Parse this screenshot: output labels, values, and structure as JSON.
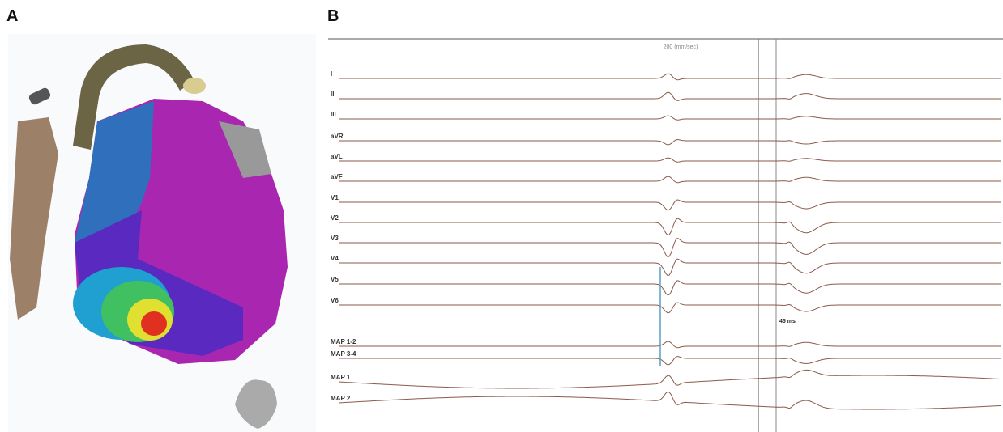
{
  "panel_a": {
    "label": "A"
  },
  "panel_b": {
    "label": "B",
    "speed_label": "200 (mm/sec)",
    "interval_label": "45 ms",
    "leads": [
      "I",
      "II",
      "III",
      "aVR",
      "aVL",
      "aVF",
      "V1",
      "V2",
      "V3",
      "V4",
      "V5",
      "V6",
      "MAP 1-2",
      "MAP 3-4",
      "MAP 1",
      "MAP 2"
    ]
  }
}
